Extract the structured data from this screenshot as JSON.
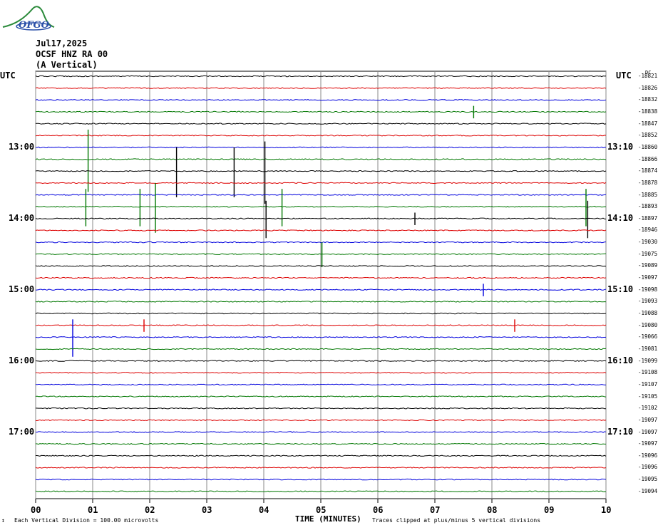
{
  "header": {
    "logo_text": "OFGO",
    "date": "Jul17,2025",
    "station": "OCSF HNZ RA 00",
    "component": "(A Vertical)"
  },
  "utc_left": "UTC",
  "utc_right": "UTC",
  "dc_label": "DC",
  "hour_labels_left": [
    "13:00",
    "14:00",
    "15:00",
    "16:00",
    "17:00"
  ],
  "hour_labels_right": [
    "13:10",
    "14:10",
    "15:10",
    "16:10",
    "17:10"
  ],
  "footer": {
    "scale_icon": "↕",
    "vertical_division": "Each Vertical Division =  100.00 microvolts",
    "time_label": "TIME (MINUTES)",
    "clip_note": "Traces clipped at plus/minus 5 vertical divisions"
  },
  "chart_data": {
    "type": "line",
    "title": "",
    "xlabel": "TIME (MINUTES)",
    "x_ticks": [
      "00",
      "01",
      "02",
      "03",
      "04",
      "05",
      "06",
      "07",
      "08",
      "09",
      "10"
    ],
    "xlim": [
      0,
      10
    ],
    "trace_colors": [
      "#000000",
      "#dd0000",
      "#0000dd",
      "#007700"
    ],
    "trace_offsets": [
      "-18821",
      "-18826",
      "-18832",
      "-18838",
      "-18847",
      "-18852",
      "-18860",
      "-18866",
      "-18874",
      "-18878",
      "-18885",
      "-18893",
      "-18897",
      "-18946",
      "-19030",
      "-19075",
      "-19089",
      "-19097",
      "-19098",
      "-19093",
      "-19088",
      "-19080",
      "-19066",
      "-19081",
      "-19099",
      "-19108",
      "-19107",
      "-19105",
      "-19102",
      "-19097",
      "-19097",
      "-19097",
      "-19096",
      "-19096",
      "-19095",
      "-19094"
    ],
    "trace_count": 36,
    "spikes": [
      {
        "trace": 7,
        "minute": 0.92,
        "amp": 5
      },
      {
        "trace": 11,
        "minute": 0.88,
        "amp": 3
      },
      {
        "trace": 11,
        "minute": 1.83,
        "amp": 3
      },
      {
        "trace": 11,
        "minute": 2.1,
        "amp": 4
      },
      {
        "trace": 8,
        "minute": 2.47,
        "amp": 4
      },
      {
        "trace": 8,
        "minute": 3.48,
        "amp": 4
      },
      {
        "trace": 8,
        "minute": 4.02,
        "amp": 5
      },
      {
        "trace": 12,
        "minute": 4.04,
        "amp": 3
      },
      {
        "trace": 11,
        "minute": 4.32,
        "amp": 3
      },
      {
        "trace": 12,
        "minute": 6.65,
        "amp": 1
      },
      {
        "trace": 11,
        "minute": 9.65,
        "amp": 3
      },
      {
        "trace": 12,
        "minute": 9.68,
        "amp": 3
      },
      {
        "trace": 15,
        "minute": 5.02,
        "amp": 2
      },
      {
        "trace": 22,
        "minute": 0.65,
        "amp": 3
      },
      {
        "trace": 3,
        "minute": 7.68,
        "amp": 1
      },
      {
        "trace": 21,
        "minute": 1.9,
        "amp": 1
      },
      {
        "trace": 21,
        "minute": 8.4,
        "amp": 1
      },
      {
        "trace": 18,
        "minute": 7.85,
        "amp": 1
      }
    ]
  }
}
